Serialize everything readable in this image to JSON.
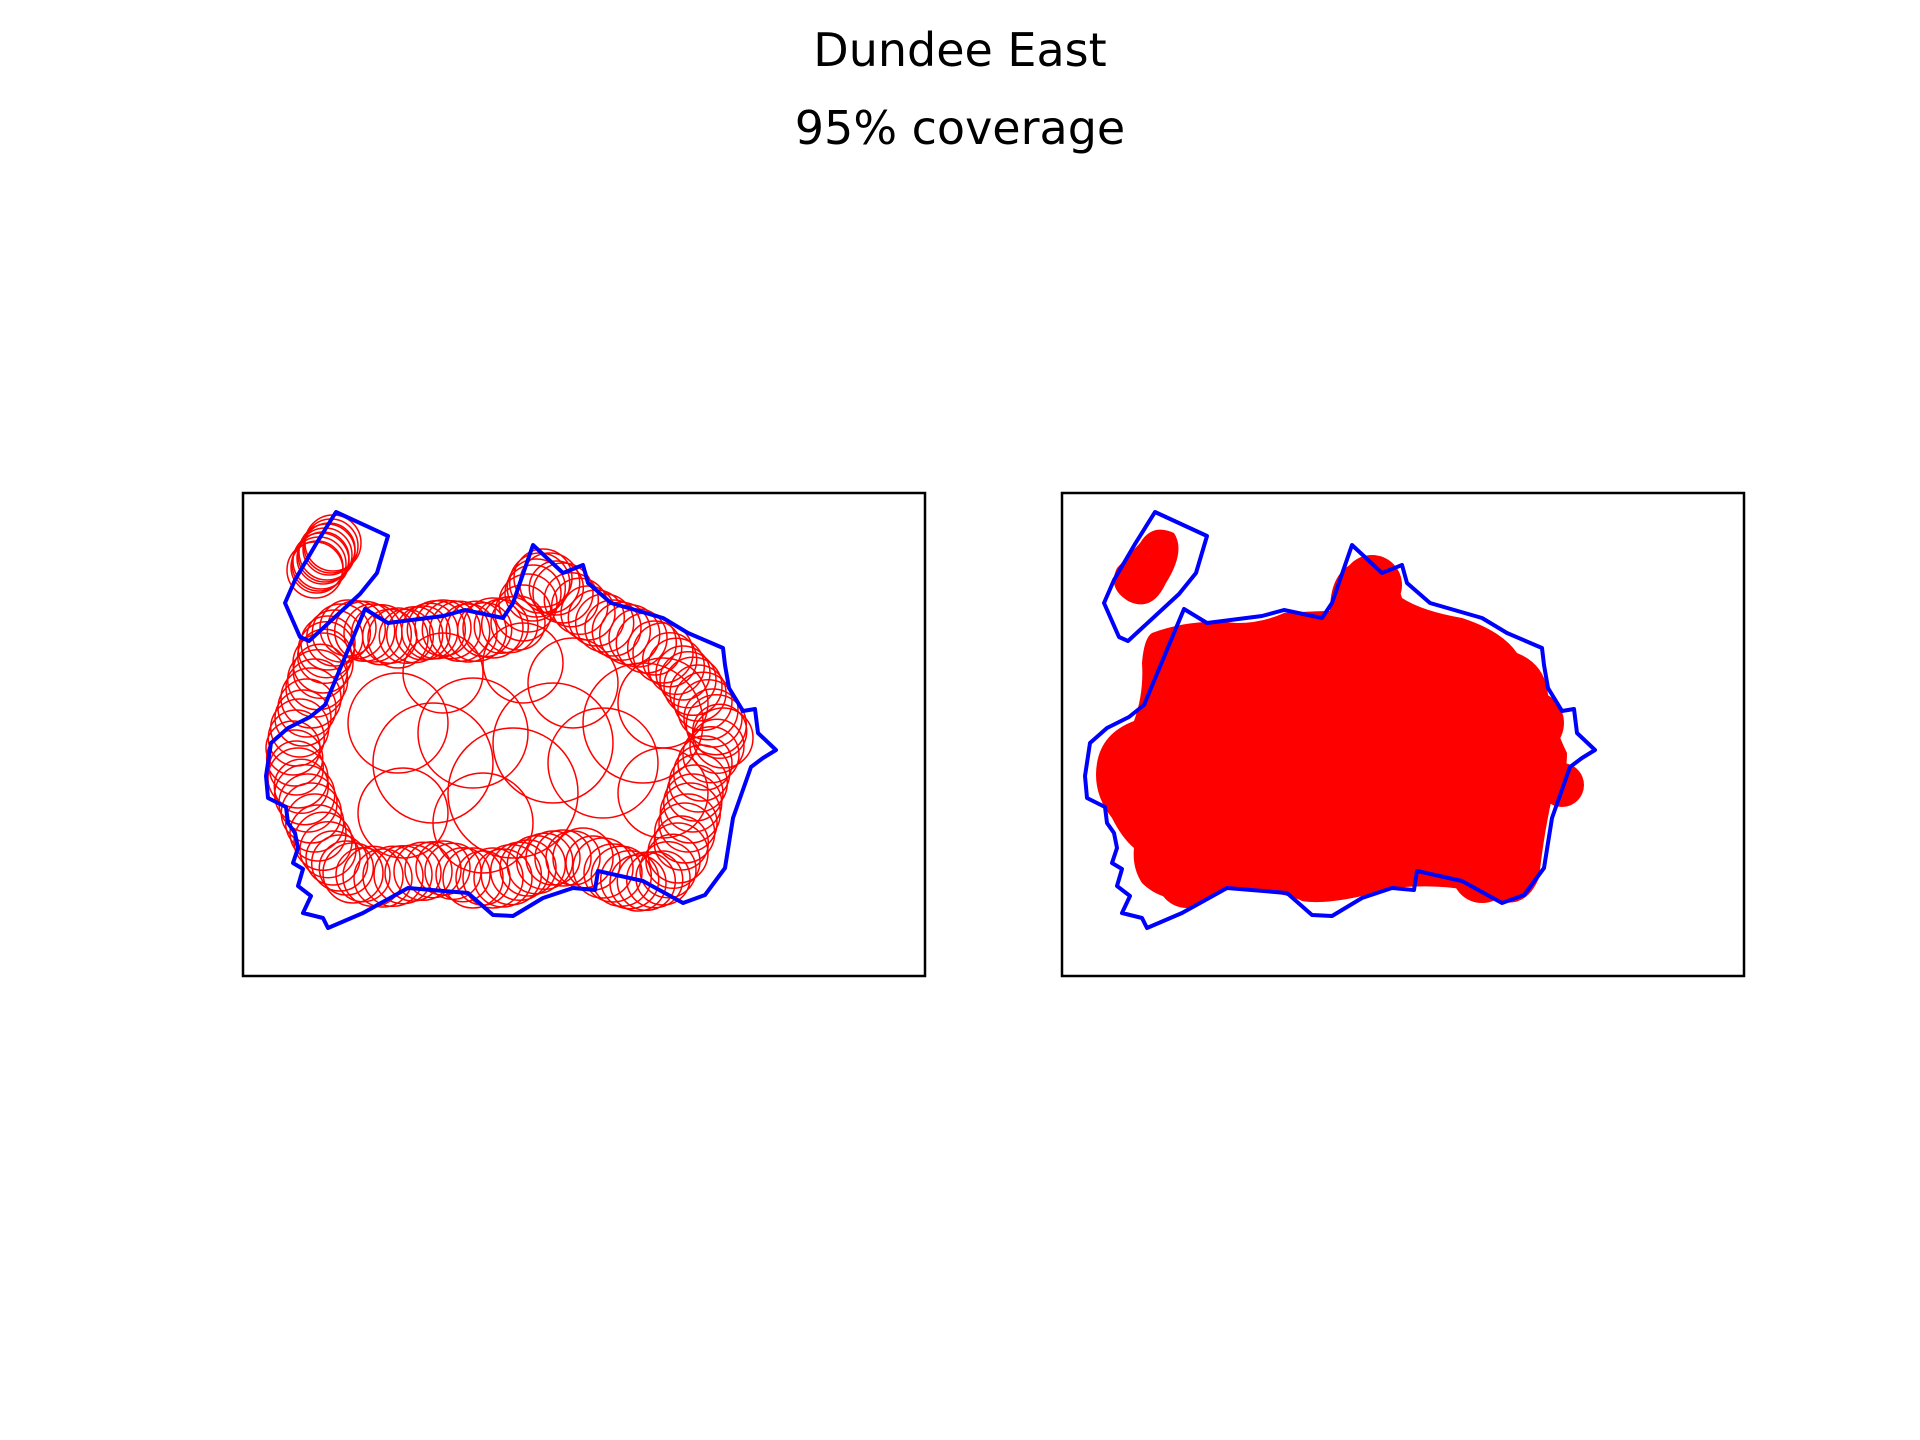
{
  "figure": {
    "title": "Dundee East",
    "subtitle": "95% coverage"
  },
  "colors": {
    "boundary": "#0000ff",
    "coverage": "#ff0000",
    "frame": "#000000",
    "background": "#ffffff"
  },
  "panels": [
    {
      "id": "circles",
      "style": "outlined circles"
    },
    {
      "id": "filled",
      "style": "filled coverage"
    }
  ]
}
